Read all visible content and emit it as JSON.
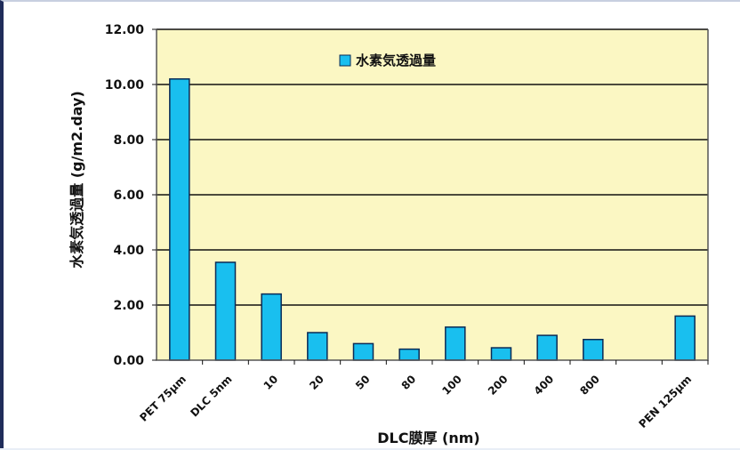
{
  "chart_data": {
    "type": "bar",
    "title": "",
    "xlabel": "DLC膜厚 (nm)",
    "ylabel": "水素気透過量 (g/m2.day)",
    "ylim": [
      0,
      12
    ],
    "yticks": [
      "0.00",
      "2.00",
      "4.00",
      "6.00",
      "8.00",
      "10.00",
      "12.00"
    ],
    "grid": true,
    "legend": "top-center",
    "categories": [
      "PET 75μm",
      "DLC 5nm",
      "10",
      "20",
      "50",
      "80",
      "100",
      "200",
      "400",
      "800",
      "",
      "PEN 125μm"
    ],
    "series": [
      {
        "name": "水素気透過量",
        "values": [
          10.2,
          3.55,
          2.4,
          1.0,
          0.6,
          0.4,
          1.2,
          0.45,
          0.9,
          0.75,
          0,
          1.6
        ]
      }
    ],
    "colors": {
      "bar": "#19bfef",
      "bar_stroke": "#0a2a55",
      "plot_bg": "#fbf7c3",
      "grid": "#111111"
    }
  }
}
